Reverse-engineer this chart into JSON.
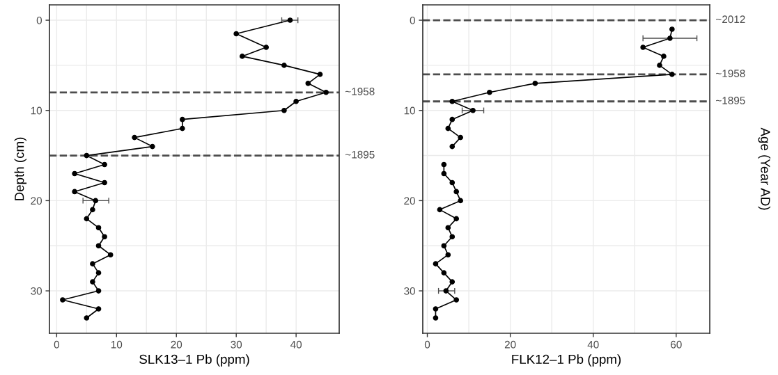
{
  "chart_data": [
    {
      "type": "line",
      "orientation": "horizontal",
      "xlabel": "SLK13–1 Pb (ppm)",
      "ylabel": "Depth (cm)",
      "x": [
        0,
        1.5,
        3,
        4,
        5,
        6,
        7,
        8,
        9,
        10,
        11,
        12,
        13,
        14,
        15,
        16,
        17,
        18,
        19,
        20,
        21,
        22,
        23,
        24,
        25,
        26,
        27,
        28,
        29,
        30,
        31,
        32,
        33
      ],
      "series": [
        {
          "color": "#000000",
          "values": [
            39,
            30,
            35,
            31,
            38,
            44,
            42,
            45,
            40,
            38,
            21,
            21,
            13,
            16,
            5,
            8,
            3,
            8,
            3,
            6.5,
            6,
            5,
            7,
            8,
            7,
            9,
            6,
            7,
            6,
            7,
            1,
            7,
            5
          ],
          "errors": [
            [
              37.6,
              40.3
            ],
            null,
            null,
            null,
            null,
            null,
            null,
            null,
            null,
            null,
            null,
            null,
            null,
            null,
            null,
            null,
            null,
            null,
            null,
            [
              4.4,
              8.7
            ],
            null,
            null,
            null,
            null,
            null,
            null,
            null,
            null,
            null,
            null,
            null,
            null,
            null
          ]
        }
      ],
      "xlim": [
        -1.2,
        47.2
      ],
      "xticks": [
        0,
        10,
        20,
        30,
        40
      ],
      "ylim": [
        34.7,
        -1.7
      ],
      "yticks": [
        0,
        10,
        20,
        30
      ],
      "ref_lines": [
        {
          "axis": "y",
          "value": 8,
          "color": "#4d4d4d",
          "line_style": "dashed"
        },
        {
          "axis": "y",
          "value": 15,
          "color": "#4d4d4d",
          "line_style": "dashed"
        }
      ],
      "annotations": [
        "~1958",
        "~1895"
      ],
      "marker": "circle",
      "line_style": "solid",
      "grid": true
    },
    {
      "type": "line",
      "orientation": "horizontal",
      "xlabel": "FLK12–1 Pb (ppm)",
      "y2label": "Age (Year AD)",
      "x": [
        1,
        2,
        3,
        4,
        5,
        6,
        7,
        8,
        9,
        10,
        11,
        12,
        13,
        14,
        15,
        16,
        17,
        18,
        19,
        20,
        21,
        22,
        23,
        24,
        25,
        26,
        27,
        28,
        29,
        30,
        31,
        32,
        33
      ],
      "series": [
        {
          "color": "#000000",
          "values": [
            59,
            58.5,
            52,
            57,
            56,
            59,
            26,
            15,
            6,
            11,
            6,
            5,
            8,
            6,
            null,
            4,
            4,
            6,
            7,
            8,
            3,
            7,
            5,
            6,
            4,
            5,
            2,
            4,
            6,
            4.5,
            7,
            2,
            2
          ],
          "errors": [
            null,
            [
              52,
              65
            ],
            null,
            null,
            null,
            null,
            null,
            null,
            null,
            [
              8.4,
              13.6
            ],
            null,
            null,
            null,
            null,
            null,
            null,
            null,
            null,
            null,
            null,
            null,
            null,
            null,
            null,
            null,
            null,
            null,
            null,
            null,
            [
              2.7,
              6.6
            ],
            null,
            null,
            null
          ]
        }
      ],
      "xlim": [
        -1.1,
        68.1
      ],
      "xticks": [
        0,
        20,
        40,
        60
      ],
      "ylim": [
        34.7,
        -1.7
      ],
      "yticks": [
        0,
        10,
        20,
        30
      ],
      "ref_lines": [
        {
          "axis": "y",
          "value": 0,
          "color": "#4d4d4d",
          "line_style": "dashed"
        },
        {
          "axis": "y",
          "value": 6,
          "color": "#4d4d4d",
          "line_style": "dashed"
        },
        {
          "axis": "y",
          "value": 9,
          "color": "#4d4d4d",
          "line_style": "dashed"
        }
      ],
      "annotations": [
        "~2012",
        "~1958",
        "~1895"
      ],
      "marker": "circle",
      "line_style": "solid",
      "grid": true
    }
  ]
}
